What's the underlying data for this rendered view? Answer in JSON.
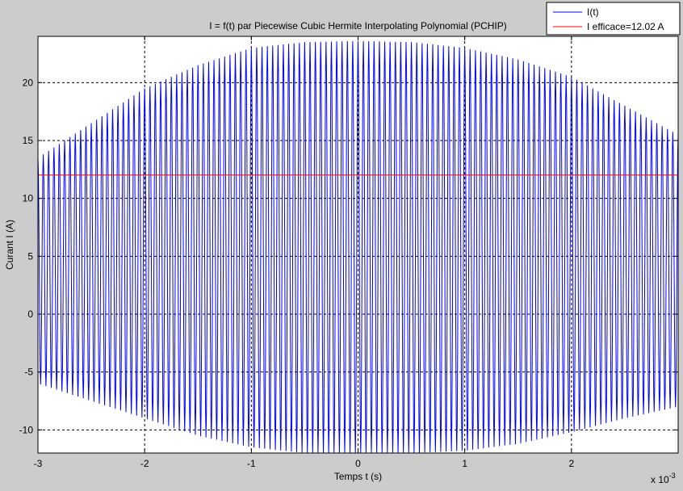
{
  "chart_data": {
    "type": "line",
    "title": "I = f(t) par Piecewise Cubic Hermite Interpolating Polynomial (PCHIP)",
    "xlabel": "Temps t (s)",
    "ylabel": "Curant I (A)",
    "x_multiplier_label": "x 10",
    "x_multiplier_exp": "-3",
    "xlim": [
      -3,
      3
    ],
    "ylim": [
      -12,
      24
    ],
    "x_ticks": [
      -3,
      -2,
      -1,
      0,
      1,
      2
    ],
    "x_tick_labels": [
      "-3",
      "-2",
      "-1",
      "0",
      "1",
      "2"
    ],
    "y_ticks": [
      -10,
      -5,
      0,
      5,
      10,
      15,
      20
    ],
    "y_tick_labels": [
      "-10",
      "-5",
      "0",
      "5",
      "10",
      "15",
      "20"
    ],
    "grid": true,
    "legend_position": "top-right",
    "series": [
      {
        "name": "I(t)",
        "color": "#0000ff",
        "kind": "oscillation",
        "cycles": 120,
        "envelope_t": [
          -3,
          -2.5,
          -2,
          -1.5,
          -1,
          -0.5,
          0,
          0.5,
          1,
          1.5,
          2,
          2.5,
          3
        ],
        "envelope_max": [
          13.5,
          16.5,
          19.5,
          21.5,
          23,
          23.5,
          23.6,
          23.5,
          23,
          22,
          20.5,
          18,
          15.5
        ],
        "envelope_min": [
          -6,
          -7.5,
          -9,
          -10.5,
          -11.5,
          -12,
          -12,
          -12,
          -11.8,
          -11.2,
          -10.2,
          -9,
          -8
        ]
      },
      {
        "name": "I efficace=12.02 A",
        "color": "#ff0000",
        "kind": "hlines",
        "y": [
          12.02,
          -12.02
        ]
      }
    ]
  }
}
